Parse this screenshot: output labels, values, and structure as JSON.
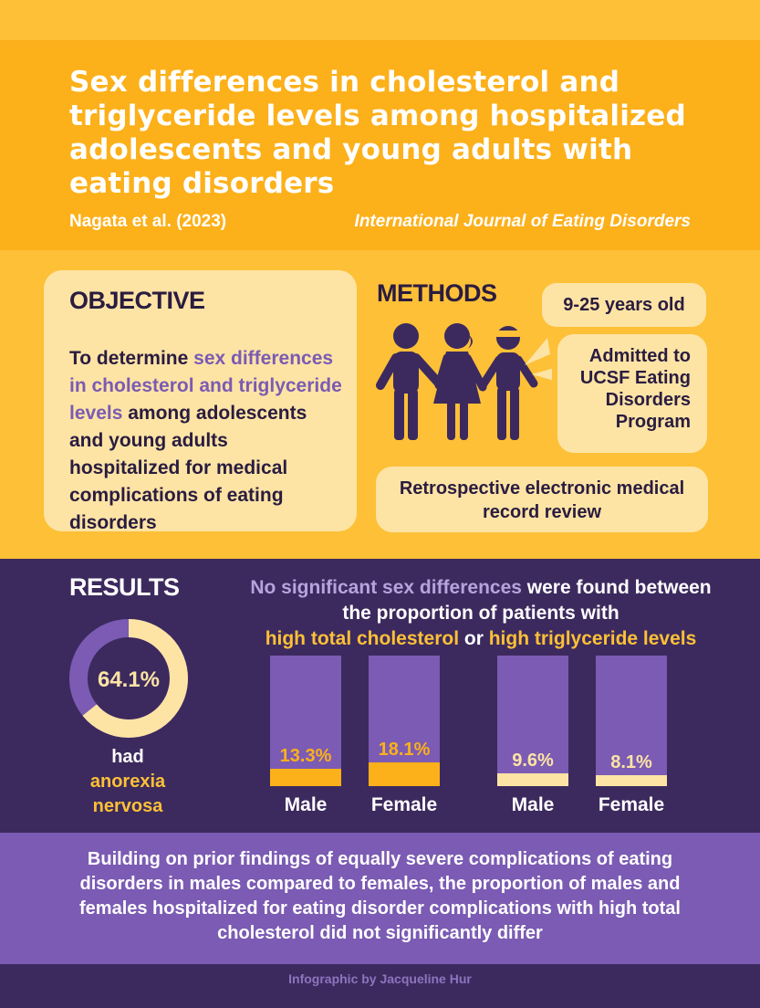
{
  "header": {
    "title": "Sex differences in cholesterol and triglyceride levels among hospitalized adolescents and young adults with eating disorders",
    "author": "Nagata et al. (2023)",
    "journal": "International Journal of Eating Disorders"
  },
  "objective": {
    "heading": "OBJECTIVE",
    "text_before": "To determine ",
    "highlight": "sex differences in cholesterol and triglyceride levels",
    "text_after": " among adolescents and young adults hospitalized for medical complications of eating disorders"
  },
  "methods": {
    "heading": "METHODS",
    "age": "9-25 years old",
    "admission": "Admitted to UCSF Eating Disorders Program",
    "review": "Retrospective electronic medical record review",
    "icon": "people-group-icon"
  },
  "results": {
    "heading": "RESULTS",
    "donut": {
      "value": 64.1,
      "label": "64.1%",
      "caption_line1": "had",
      "caption_line2": "anorexia",
      "caption_line3": "nervosa"
    },
    "finding": {
      "part1": "No significant sex differences",
      "part2": " were found between the proportion of patients with ",
      "part3": "high total cholesterol",
      "part4": " or ",
      "part5": "high triglyceride levels"
    }
  },
  "chart_data": {
    "type": "bar",
    "series": [
      {
        "name": "high total cholesterol",
        "categories": [
          "Male",
          "Female"
        ],
        "values": [
          13.3,
          18.1
        ],
        "labels": [
          "13.3%",
          "18.1%"
        ]
      },
      {
        "name": "high triglyceride levels",
        "categories": [
          "Male",
          "Female"
        ],
        "values": [
          9.6,
          8.1
        ],
        "labels": [
          "9.6%",
          "8.1%"
        ]
      }
    ],
    "ylim": [
      0,
      100
    ]
  },
  "conclusion": {
    "text": "Building on prior findings of equally severe complications of eating disorders in males compared to females, the proportion of males and females hospitalized for eating disorder complications with high total cholesterol did not significantly differ"
  },
  "footer": {
    "credit": "Infographic by Jacqueline Hur"
  },
  "colors": {
    "orange": "#fcb01a",
    "yellow": "#fdc037",
    "cream": "#fde4a5",
    "purple": "#7b5bb3",
    "dark_purple": "#3c2a5e",
    "navy": "#2a1c40"
  }
}
